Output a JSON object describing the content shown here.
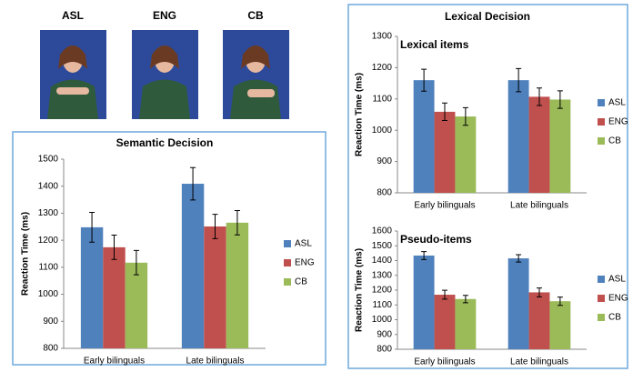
{
  "images": {
    "labels": [
      {
        "text": "ASL",
        "color": "#4f81bd"
      },
      {
        "text": "ENG",
        "color": "#c0504d"
      },
      {
        "text": "CB",
        "color": "#9bbb59"
      }
    ]
  },
  "panel_title": "Lexical Decision",
  "chart_data": [
    {
      "type": "bar",
      "title": "Semantic Decision",
      "y_label": "Reaction Time (ms)",
      "categories": [
        "Early bilinguals",
        "Late bilinguals"
      ],
      "series": [
        {
          "name": "ASL",
          "color": "#4f81bd",
          "values": [
            1248,
            1409
          ],
          "errors": [
            55,
            60
          ]
        },
        {
          "name": "ENG",
          "color": "#c0504d",
          "values": [
            1174,
            1251
          ],
          "errors": [
            45,
            45
          ]
        },
        {
          "name": "CB",
          "color": "#9bbb59",
          "values": [
            1117,
            1265
          ],
          "errors": [
            45,
            45
          ]
        }
      ],
      "ylim": [
        800,
        1500
      ],
      "yticks": [
        800,
        900,
        1000,
        1100,
        1200,
        1300,
        1400,
        1500
      ],
      "legend": "right"
    },
    {
      "type": "bar",
      "title": "Lexical items",
      "y_label": "Reaction Time (ms)",
      "categories": [
        "Early bilinguals",
        "Late bilinguals"
      ],
      "series": [
        {
          "name": "ASL",
          "color": "#4f81bd",
          "values": [
            1160,
            1160
          ],
          "errors": [
            35,
            37
          ]
        },
        {
          "name": "ENG",
          "color": "#c0504d",
          "values": [
            1059,
            1107
          ],
          "errors": [
            28,
            28
          ]
        },
        {
          "name": "CB",
          "color": "#9bbb59",
          "values": [
            1044,
            1098
          ],
          "errors": [
            28,
            28
          ]
        }
      ],
      "ylim": [
        800,
        1300
      ],
      "yticks": [
        800,
        900,
        1000,
        1100,
        1200,
        1300
      ],
      "legend": "right"
    },
    {
      "type": "bar",
      "title": "Pseudo-items",
      "y_label": "Reaction Time (ms)",
      "categories": [
        "Early bilinguals",
        "Late bilinguals"
      ],
      "series": [
        {
          "name": "ASL",
          "color": "#4f81bd",
          "values": [
            1434,
            1415
          ],
          "errors": [
            27,
            25
          ]
        },
        {
          "name": "ENG",
          "color": "#c0504d",
          "values": [
            1169,
            1185
          ],
          "errors": [
            30,
            30
          ]
        },
        {
          "name": "CB",
          "color": "#9bbb59",
          "values": [
            1140,
            1125
          ],
          "errors": [
            25,
            28
          ]
        }
      ],
      "ylim": [
        800,
        1600
      ],
      "yticks": [
        800,
        900,
        1000,
        1100,
        1200,
        1300,
        1400,
        1500,
        1600
      ],
      "legend": "right"
    }
  ]
}
